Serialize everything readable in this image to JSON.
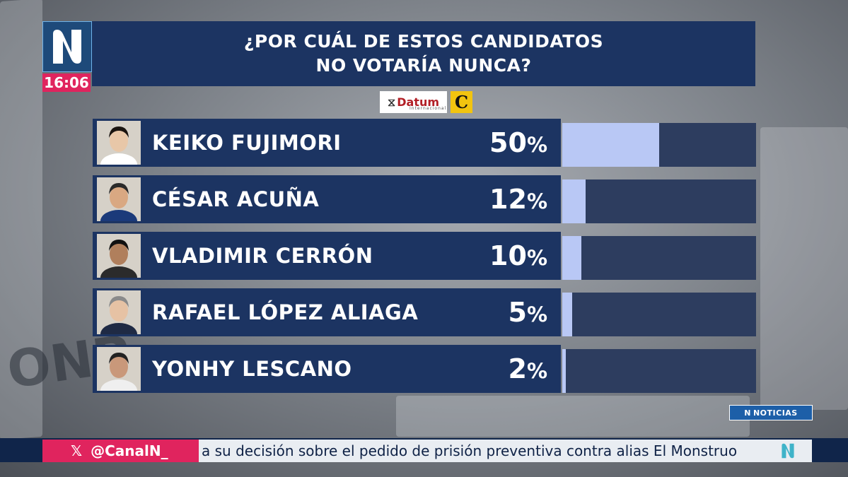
{
  "header": {
    "clock": "16:06",
    "title_line1": "¿POR CUÁL DE ESTOS CANDIDATOS",
    "title_line2": "NO VOTARÍA NUNCA?"
  },
  "sources": {
    "datum": "Datum",
    "datum_sub": "Internacional",
    "comercio": "C"
  },
  "chart_data": {
    "type": "bar",
    "title": "¿POR CUÁL DE ESTOS CANDIDATOS NO VOTARÍA NUNCA?",
    "categories": [
      "KEIKO FUJIMORI",
      "CÉSAR ACUÑA",
      "VLADIMIR CERRÓN",
      "RAFAEL LÓPEZ ALIAGA",
      "YONHY LESCANO"
    ],
    "values": [
      50,
      12,
      10,
      5,
      2
    ],
    "labels": [
      "50",
      "12",
      "10",
      "5",
      "2"
    ],
    "unit": "%",
    "xlim": [
      0,
      100
    ],
    "orientation": "horizontal",
    "bar_color": "#b9c8f5",
    "track_color": "#2d3d5f"
  },
  "badge": {
    "noticias": "NOTICIAS"
  },
  "ticker": {
    "handle": "@CanalN_",
    "text": "a su decisión sobre el pedido de prisión preventiva contra alias El Monstruo"
  },
  "colors": {
    "brand_blue": "#1c3462",
    "accent_pink": "#e0245e"
  }
}
